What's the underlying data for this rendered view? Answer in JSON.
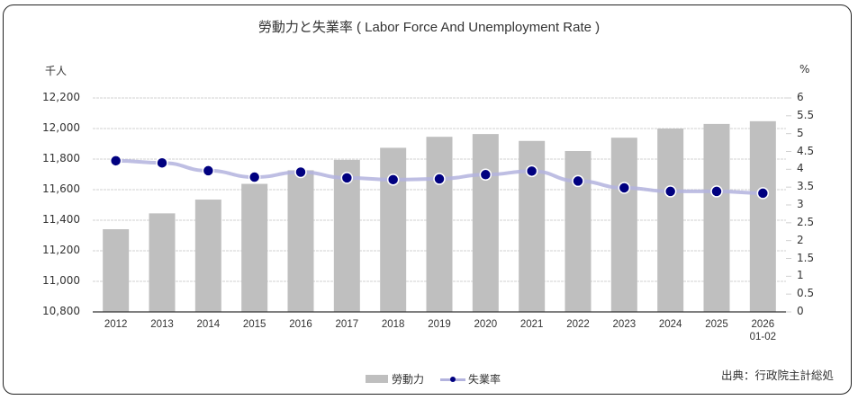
{
  "chart": {
    "title": "勞動力と失業率 ( Labor Force And Unemployment Rate )",
    "left_unit": "千人",
    "right_unit": "%",
    "source": "出典：行政院主計総処",
    "legend": {
      "bar_label": "勞動力",
      "line_label": "失業率"
    },
    "left_ticks": [
      "12,200",
      "12,000",
      "11,800",
      "11,600",
      "11,400",
      "11,200",
      "11,000",
      "10,800"
    ],
    "right_ticks": [
      "6",
      "5.5",
      "5",
      "4.5",
      "4",
      "3.5",
      "3",
      "2.5",
      "2",
      "1.5",
      "1",
      "0.5",
      "0"
    ],
    "x_labels": [
      "2012",
      "2013",
      "2014",
      "2015",
      "2016",
      "2017",
      "2018",
      "2019",
      "2020",
      "2021",
      "2022",
      "2023",
      "2024",
      "2025",
      "2026"
    ],
    "x_label_last_sub": "01-02",
    "colors": {
      "bar": "#bfbfbf",
      "line": "#b3b3de",
      "marker": "#000080",
      "grid": "#d0d0d0",
      "axis": "#333333"
    }
  },
  "chart_data": {
    "type": "bar+line",
    "title": "勞動力と失業率 ( Labor Force And Unemployment Rate )",
    "categories": [
      "2012",
      "2013",
      "2014",
      "2015",
      "2016",
      "2017",
      "2018",
      "2019",
      "2020",
      "2021",
      "2022",
      "2023",
      "2024",
      "2025",
      "2026 01-02"
    ],
    "series": [
      {
        "name": "勞動力",
        "type": "bar",
        "axis": "left",
        "unit": "千人",
        "values": [
          11341,
          11445,
          11535,
          11638,
          11727,
          11795,
          11874,
          11946,
          11964,
          11919,
          11853,
          11940,
          12000,
          12030,
          12048
        ]
      },
      {
        "name": "失業率",
        "type": "line",
        "axis": "right",
        "unit": "%",
        "values": [
          4.24,
          4.18,
          3.96,
          3.78,
          3.92,
          3.76,
          3.71,
          3.73,
          3.85,
          3.95,
          3.67,
          3.48,
          3.38,
          3.38,
          3.33
        ]
      }
    ],
    "ylabel_left": "千人",
    "ylim_left": [
      10800,
      12200
    ],
    "ylabel_right": "%",
    "ylim_right": [
      0,
      6
    ],
    "grid": true,
    "legend_position": "bottom",
    "annotation": "出典：行政院主計総処"
  }
}
